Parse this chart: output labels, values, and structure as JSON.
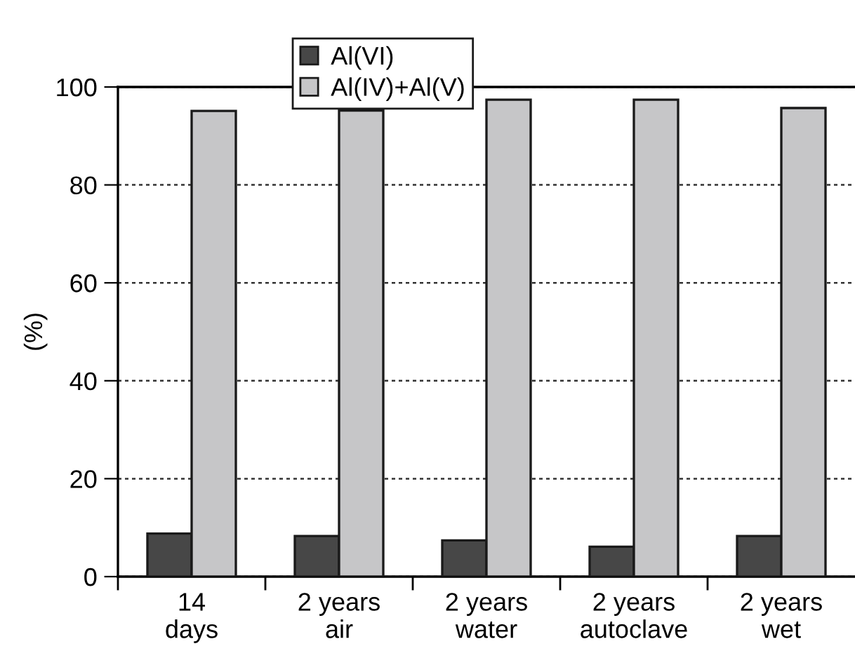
{
  "chart_data": {
    "type": "bar",
    "ylabel": "(%)",
    "categories": [
      "14\ndays",
      "2 years\nair",
      "2 years\nwater",
      "2 years\nautoclave",
      "2 years\nwet"
    ],
    "series": [
      {
        "name": "Al(VI)",
        "color": "#474747",
        "values": [
          8.8,
          8.3,
          7.4,
          6.1,
          8.3
        ]
      },
      {
        "name": "Al(IV)+Al(V)",
        "color": "#c6c6c8",
        "values": [
          95.1,
          95.2,
          97.4,
          97.4,
          95.7
        ]
      }
    ],
    "ylim": [
      0,
      100
    ],
    "yticks": [
      0,
      20,
      40,
      60,
      80,
      100
    ],
    "grid": "y",
    "legend": "top"
  }
}
